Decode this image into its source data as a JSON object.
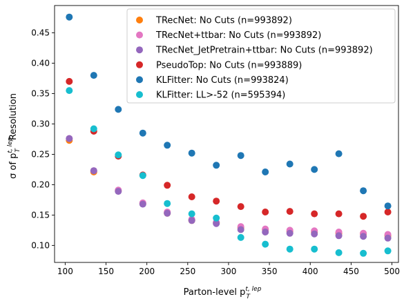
{
  "chart_data": {
    "type": "scatter",
    "xlabel": "Parton-level p",
    "xlabel_sub": "T",
    "xlabel_sup": "t, lep",
    "ylabel_prefix": "σ of p",
    "ylabel_sub": "T",
    "ylabel_sup": "t, lep",
    "ylabel_suffix": " Resolution",
    "xlim": [
      87,
      508
    ],
    "ylim": [
      0.072,
      0.495
    ],
    "xticks": [
      100,
      150,
      200,
      250,
      300,
      350,
      400,
      450,
      500
    ],
    "yticks": [
      0.1,
      0.15,
      0.2,
      0.25,
      0.3,
      0.35,
      0.4,
      0.45
    ],
    "xtick_labels": [
      "100",
      "150",
      "200",
      "250",
      "300",
      "350",
      "400",
      "450",
      "500"
    ],
    "ytick_labels": [
      "0.10",
      "0.15",
      "0.20",
      "0.25",
      "0.30",
      "0.35",
      "0.40",
      "0.45"
    ],
    "grid": false,
    "legend_position": "top-right",
    "x": [
      105,
      135,
      165,
      195,
      225,
      255,
      285,
      315,
      345,
      375,
      405,
      435,
      465,
      495
    ],
    "series": [
      {
        "name": "TRecNet: No Cuts (n=993892)",
        "color": "#ff7f0e",
        "values": [
          0.273,
          0.221,
          0.19,
          0.169,
          0.153,
          0.141,
          0.137,
          0.129,
          0.126,
          0.123,
          0.122,
          0.12,
          0.119,
          0.116
        ]
      },
      {
        "name": "TRecNet+ttbar: No Cuts (n=993892)",
        "color": "#e377c2",
        "values": [
          0.276,
          0.223,
          0.191,
          0.17,
          0.155,
          0.143,
          0.138,
          0.131,
          0.127,
          0.125,
          0.124,
          0.122,
          0.12,
          0.118
        ]
      },
      {
        "name": "TRecNet_JetPretrain+ttbar: No Cuts (n=993892)",
        "color": "#9467bd",
        "values": [
          0.276,
          0.223,
          0.189,
          0.168,
          0.153,
          0.141,
          0.136,
          0.126,
          0.122,
          0.12,
          0.119,
          0.116,
          0.115,
          0.112
        ]
      },
      {
        "name": "PseudoTop: No Cuts (n=993889)",
        "color": "#d62728",
        "values": [
          0.37,
          0.288,
          0.247,
          0.216,
          0.199,
          0.18,
          0.173,
          0.164,
          0.155,
          0.156,
          0.152,
          0.152,
          0.148,
          0.155
        ]
      },
      {
        "name": "KLFitter: No Cuts (n=993824)",
        "color": "#1f77b4",
        "values": [
          0.476,
          0.38,
          0.324,
          0.285,
          0.265,
          0.252,
          0.232,
          0.248,
          0.221,
          0.234,
          0.225,
          0.251,
          0.19,
          0.165
        ]
      },
      {
        "name": "KLFitter: LL>-52 (n=595394)",
        "color": "#17becf",
        "values": [
          0.355,
          0.292,
          0.249,
          0.215,
          0.169,
          0.152,
          0.145,
          0.113,
          0.102,
          0.094,
          0.094,
          0.088,
          0.087,
          0.091
        ]
      }
    ]
  }
}
